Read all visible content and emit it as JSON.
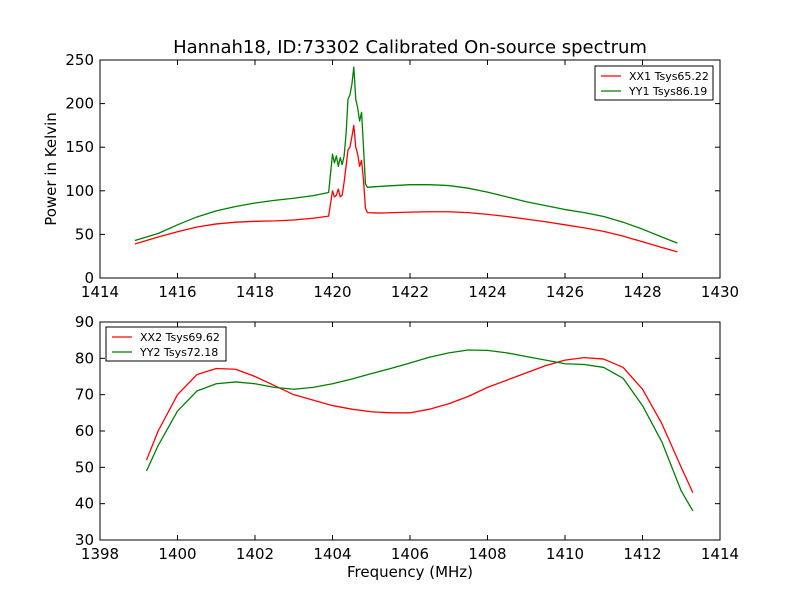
{
  "chart_data": [
    {
      "type": "line",
      "title": "Hannah18, ID:73302 Calibrated On-source spectrum",
      "xlabel": "",
      "ylabel": "Power in Kelvin",
      "xlim": [
        1414,
        1430
      ],
      "ylim": [
        0,
        250
      ],
      "xticks": [
        1414,
        1416,
        1418,
        1420,
        1422,
        1424,
        1426,
        1428,
        1430
      ],
      "yticks": [
        0,
        50,
        100,
        150,
        200,
        250
      ],
      "legend_position": "top-right",
      "series": [
        {
          "name": "XX1 Tsys65.22",
          "color": "#ff0000",
          "points": [
            [
              1414.9,
              39
            ],
            [
              1415.5,
              47
            ],
            [
              1416,
              53
            ],
            [
              1416.5,
              58.5
            ],
            [
              1417,
              62
            ],
            [
              1417.5,
              64
            ],
            [
              1418,
              65
            ],
            [
              1418.5,
              65.5
            ],
            [
              1419,
              66.5
            ],
            [
              1419.5,
              68.5
            ],
            [
              1419.9,
              71
            ],
            [
              1420.0,
              100
            ],
            [
              1420.05,
              93
            ],
            [
              1420.1,
              95
            ],
            [
              1420.15,
              102
            ],
            [
              1420.2,
              93
            ],
            [
              1420.25,
              95
            ],
            [
              1420.3,
              110
            ],
            [
              1420.35,
              128
            ],
            [
              1420.4,
              147
            ],
            [
              1420.45,
              150
            ],
            [
              1420.5,
              162
            ],
            [
              1420.55,
              175
            ],
            [
              1420.6,
              150
            ],
            [
              1420.65,
              142
            ],
            [
              1420.7,
              128
            ],
            [
              1420.75,
              135
            ],
            [
              1420.8,
              112
            ],
            [
              1420.85,
              80
            ],
            [
              1420.9,
              75
            ],
            [
              1421.2,
              74.5
            ],
            [
              1422,
              75.5
            ],
            [
              1422.5,
              76
            ],
            [
              1423,
              76
            ],
            [
              1423.5,
              75
            ],
            [
              1424,
              73
            ],
            [
              1424.5,
              70.5
            ],
            [
              1425,
              67.5
            ],
            [
              1425.5,
              64.5
            ],
            [
              1426,
              61
            ],
            [
              1426.5,
              57.5
            ],
            [
              1427,
              53.5
            ],
            [
              1427.5,
              48
            ],
            [
              1428,
              41.5
            ],
            [
              1428.5,
              35
            ],
            [
              1428.9,
              30
            ]
          ]
        },
        {
          "name": "YY1 Tsys86.19",
          "color": "#008000",
          "points": [
            [
              1414.9,
              43
            ],
            [
              1415.5,
              51
            ],
            [
              1416,
              61
            ],
            [
              1416.5,
              70
            ],
            [
              1417,
              77
            ],
            [
              1417.5,
              82
            ],
            [
              1418,
              86
            ],
            [
              1418.5,
              89
            ],
            [
              1419,
              91.5
            ],
            [
              1419.5,
              94.5
            ],
            [
              1419.9,
              98
            ],
            [
              1420.0,
              142
            ],
            [
              1420.05,
              132
            ],
            [
              1420.1,
              140
            ],
            [
              1420.15,
              128
            ],
            [
              1420.2,
              138
            ],
            [
              1420.25,
              130
            ],
            [
              1420.3,
              140
            ],
            [
              1420.35,
              165
            ],
            [
              1420.4,
              205
            ],
            [
              1420.45,
              210
            ],
            [
              1420.5,
              222
            ],
            [
              1420.55,
              242
            ],
            [
              1420.6,
              205
            ],
            [
              1420.65,
              195
            ],
            [
              1420.7,
              180
            ],
            [
              1420.75,
              190
            ],
            [
              1420.8,
              150
            ],
            [
              1420.85,
              108
            ],
            [
              1420.9,
              104
            ],
            [
              1421.2,
              105
            ],
            [
              1422,
              107
            ],
            [
              1422.5,
              107
            ],
            [
              1423,
              106
            ],
            [
              1423.5,
              103
            ],
            [
              1424,
              98.5
            ],
            [
              1424.5,
              93
            ],
            [
              1425,
              87.5
            ],
            [
              1425.5,
              83
            ],
            [
              1426,
              78.5
            ],
            [
              1426.5,
              75
            ],
            [
              1427,
              70.5
            ],
            [
              1427.5,
              64
            ],
            [
              1428,
              56
            ],
            [
              1428.5,
              47
            ],
            [
              1428.9,
              40
            ]
          ]
        }
      ]
    },
    {
      "type": "line",
      "title": "",
      "xlabel": "Frequency (MHz)",
      "ylabel": "",
      "xlim": [
        1398,
        1414
      ],
      "ylim": [
        30,
        90
      ],
      "xticks": [
        1398,
        1400,
        1402,
        1404,
        1406,
        1408,
        1410,
        1412,
        1414
      ],
      "yticks": [
        30,
        40,
        50,
        60,
        70,
        80,
        90
      ],
      "legend_position": "top-left",
      "series": [
        {
          "name": "XX2 Tsys69.62",
          "color": "#ff0000",
          "points": [
            [
              1399.2,
              52
            ],
            [
              1399.5,
              60
            ],
            [
              1400,
              70
            ],
            [
              1400.5,
              75.5
            ],
            [
              1401,
              77.2
            ],
            [
              1401.5,
              77
            ],
            [
              1402,
              75
            ],
            [
              1402.5,
              72.5
            ],
            [
              1403,
              70
            ],
            [
              1403.5,
              68.5
            ],
            [
              1404,
              67
            ],
            [
              1404.5,
              66
            ],
            [
              1405,
              65.3
            ],
            [
              1405.5,
              65
            ],
            [
              1406,
              65
            ],
            [
              1406.5,
              66
            ],
            [
              1407,
              67.5
            ],
            [
              1407.5,
              69.5
            ],
            [
              1408,
              72
            ],
            [
              1408.5,
              74
            ],
            [
              1409,
              76
            ],
            [
              1409.5,
              78
            ],
            [
              1410,
              79.5
            ],
            [
              1410.5,
              80.2
            ],
            [
              1411,
              79.8
            ],
            [
              1411.5,
              77.5
            ],
            [
              1412,
              71.5
            ],
            [
              1412.5,
              62
            ],
            [
              1413,
              50
            ],
            [
              1413.3,
              43
            ]
          ]
        },
        {
          "name": "YY2 Tsys72.18",
          "color": "#008000",
          "points": [
            [
              1399.2,
              49
            ],
            [
              1399.5,
              56
            ],
            [
              1400,
              65.5
            ],
            [
              1400.5,
              71
            ],
            [
              1401,
              73
            ],
            [
              1401.5,
              73.5
            ],
            [
              1402,
              73
            ],
            [
              1402.5,
              72
            ],
            [
              1403,
              71.5
            ],
            [
              1403.5,
              72
            ],
            [
              1404,
              73
            ],
            [
              1404.5,
              74.3
            ],
            [
              1405,
              75.8
            ],
            [
              1405.5,
              77.2
            ],
            [
              1406,
              78.7
            ],
            [
              1406.5,
              80.3
            ],
            [
              1407,
              81.5
            ],
            [
              1407.5,
              82.3
            ],
            [
              1408,
              82.2
            ],
            [
              1408.5,
              81.5
            ],
            [
              1409,
              80.5
            ],
            [
              1409.5,
              79.5
            ],
            [
              1410,
              78.5
            ],
            [
              1410.5,
              78.3
            ],
            [
              1411,
              77.5
            ],
            [
              1411.5,
              74.5
            ],
            [
              1412,
              67
            ],
            [
              1412.5,
              57
            ],
            [
              1413,
              43.5
            ],
            [
              1413.3,
              38
            ]
          ]
        }
      ]
    }
  ]
}
